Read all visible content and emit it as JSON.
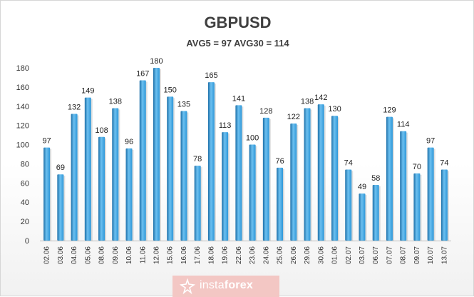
{
  "chart_data": {
    "type": "bar",
    "title": "GBPUSD",
    "subtitle": "AVG5 = 97 AVG30 = 114",
    "categories": [
      "02.06",
      "03.06",
      "04.06",
      "05.06",
      "08.06",
      "09.06",
      "10.06",
      "11.06",
      "12.06",
      "15.06",
      "16.06",
      "17.06",
      "18.06",
      "19.06",
      "22.06",
      "23.06",
      "24.06",
      "25.06",
      "26.06",
      "29.06",
      "30.06",
      "01.06",
      "02.07",
      "03.07",
      "06.07",
      "07.07",
      "08.07",
      "09.07",
      "10.07",
      "13.07"
    ],
    "values": [
      97,
      69,
      132,
      149,
      108,
      138,
      96,
      167,
      180,
      150,
      135,
      78,
      165,
      113,
      141,
      100,
      128,
      76,
      122,
      138,
      142,
      130,
      74,
      49,
      58,
      129,
      114,
      70,
      97,
      74
    ],
    "ylim": [
      0,
      180
    ],
    "yticks": [
      0,
      20,
      40,
      60,
      80,
      100,
      120,
      140,
      160,
      180
    ],
    "grid": false,
    "legend": "none",
    "bar_color": "#2e97d8",
    "bar_color_light": "#6cc0f0",
    "bar_color_dark": "#1c6fa8"
  },
  "branding": {
    "text_prefix": "insta",
    "text_suffix": "forex",
    "logo_icon": "instaforex-logo-icon"
  }
}
